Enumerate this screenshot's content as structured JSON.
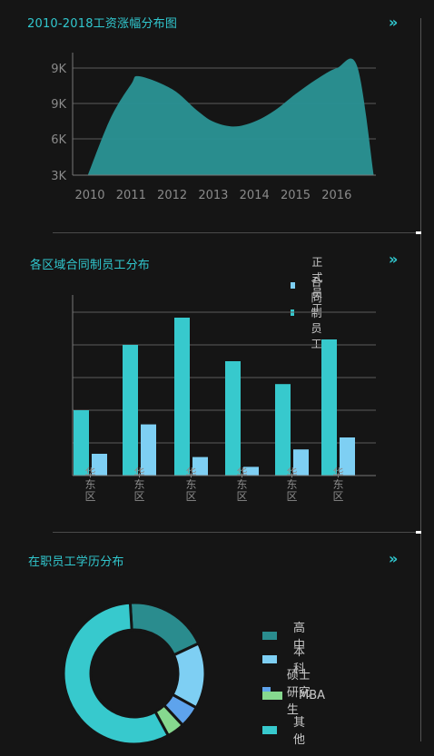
{
  "colors": {
    "background": "#151515",
    "accent": "#31c8cf",
    "area_fill": "#2a9395",
    "bar_formal": "#7ecff3",
    "bar_contract": "#37c9cd",
    "axis_text": "#8a8a8a",
    "grid": "#5a5a5a"
  },
  "icons": {
    "expand": "double-chevron-right-icon"
  },
  "panels": {
    "area": {
      "title": "2010-2018工资涨幅分布图",
      "expand_symbol": "»"
    },
    "bar": {
      "title": "各区域合同制员工分布",
      "expand_symbol": "»"
    },
    "donut": {
      "title": "在职员工学历分布",
      "expand_symbol": "»"
    }
  },
  "chart_data": [
    {
      "type": "area",
      "title": "2010-2018工资涨幅分布图",
      "categories": [
        "2010",
        "2011",
        "2012",
        "2013",
        "2014",
        "2015",
        "2016"
      ],
      "y_tick_labels": [
        "3K",
        "6K",
        "9K",
        "9K"
      ],
      "series": [
        {
          "x": [
            2009.95,
            2010.5,
            2011.0,
            2011.2,
            2012.0,
            2012.6,
            2013.0,
            2013.5,
            2014.0,
            2014.5,
            2015.0,
            2015.5,
            2016.0,
            2016.5,
            2016.9
          ],
          "values": [
            3.0,
            6.5,
            8.6,
            9.1,
            8.3,
            7.0,
            6.3,
            6.0,
            6.3,
            7.0,
            8.0,
            8.9,
            9.6,
            9.7,
            3.0
          ]
        }
      ],
      "ylim": [
        3,
        10.5
      ],
      "grid": true
    },
    {
      "type": "bar",
      "title": "各区域合同制员工分布",
      "categories": [
        "华东区",
        "华东区",
        "华东区",
        "华东区",
        "华东区",
        "华东区"
      ],
      "series": [
        {
          "name": "合同制员工",
          "values": [
            60,
            120,
            145,
            105,
            84,
            125
          ]
        },
        {
          "name": "正式员工",
          "values": [
            20,
            47,
            17,
            8,
            24,
            35
          ]
        }
      ],
      "legend": [
        "正式员工",
        "合同制员工"
      ],
      "ylim": [
        0,
        150
      ],
      "grid": true,
      "legend_position": "top-right"
    },
    {
      "type": "pie",
      "title": "在职员工学历分布",
      "labels": [
        "高中",
        "本科",
        "硕士研究生",
        "MBA",
        "其他"
      ],
      "values": [
        19,
        15,
        5,
        4,
        57
      ],
      "colors": [
        "#2a8c8e",
        "#7ecff3",
        "#5ea3ec",
        "#86d88f",
        "#37c9cd"
      ],
      "legend_position": "right"
    }
  ]
}
